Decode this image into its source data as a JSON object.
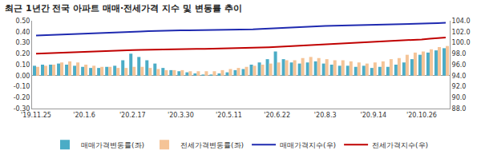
{
  "chart_data": {
    "type": "bar",
    "title": "최근 1년간 전국 아파트 매매·전세가격 지수 및 변동률 추이",
    "categories": [
      "'19.11.25",
      null,
      null,
      null,
      null,
      null,
      "'20.1.6",
      null,
      null,
      null,
      null,
      null,
      "'20.2.17",
      null,
      null,
      null,
      null,
      null,
      "'20.3.30",
      null,
      null,
      null,
      null,
      null,
      "'20.5.11",
      null,
      null,
      null,
      null,
      null,
      "'20.6.22",
      null,
      null,
      null,
      null,
      null,
      "'20.8.3",
      null,
      null,
      null,
      null,
      null,
      "'20.9.14",
      null,
      null,
      null,
      null,
      null,
      "'20.10.26",
      null,
      null,
      null
    ],
    "series": [
      {
        "name": "매매가격변동률(좌)",
        "type": "bar",
        "color": "#4bacc6",
        "values": [
          0.09,
          0.1,
          0.1,
          0.11,
          0.1,
          0.09,
          0.08,
          0.07,
          0.07,
          0.08,
          0.09,
          0.14,
          0.2,
          0.17,
          0.14,
          0.11,
          0.07,
          0.05,
          0.04,
          0.03,
          0.02,
          0.01,
          0.01,
          0.02,
          0.03,
          0.05,
          0.06,
          0.1,
          0.12,
          0.15,
          0.22,
          0.15,
          0.12,
          0.11,
          0.12,
          0.13,
          0.11,
          0.1,
          0.09,
          0.09,
          0.08,
          0.09,
          0.07,
          0.08,
          0.08,
          0.1,
          0.12,
          0.15,
          0.19,
          0.21,
          0.23,
          0.25
        ]
      },
      {
        "name": "전세가격변동률(좌)",
        "type": "bar",
        "color": "#f5c497",
        "values": [
          0.08,
          0.09,
          0.1,
          0.12,
          0.13,
          0.12,
          0.1,
          0.09,
          0.08,
          0.08,
          0.07,
          0.07,
          0.08,
          0.08,
          0.07,
          0.06,
          0.05,
          0.05,
          0.05,
          0.04,
          0.04,
          0.04,
          0.04,
          0.05,
          0.06,
          0.07,
          0.08,
          0.09,
          0.1,
          0.11,
          0.12,
          0.14,
          0.14,
          0.16,
          0.17,
          0.16,
          0.15,
          0.14,
          0.14,
          0.13,
          0.12,
          0.11,
          0.12,
          0.13,
          0.15,
          0.16,
          0.19,
          0.21,
          0.22,
          0.24,
          0.26,
          0.27
        ]
      },
      {
        "name": "매매가격지수(우)",
        "type": "line",
        "axis": "y2",
        "color": "#1f2ab0",
        "values": [
          101.3,
          101.35,
          101.4,
          101.45,
          101.5,
          101.55,
          101.6,
          101.65,
          101.7,
          101.75,
          101.8,
          101.85,
          101.95,
          102.05,
          102.12,
          102.18,
          102.22,
          102.24,
          102.26,
          102.27,
          102.28,
          102.29,
          102.3,
          102.31,
          102.33,
          102.36,
          102.4,
          102.45,
          102.52,
          102.6,
          102.7,
          102.78,
          102.85,
          102.92,
          102.98,
          103.03,
          103.07,
          103.1,
          103.13,
          103.16,
          103.18,
          103.21,
          103.23,
          103.25,
          103.28,
          103.31,
          103.35,
          103.4,
          103.46,
          103.52,
          103.58,
          103.65
        ]
      },
      {
        "name": "전세가격지수(우)",
        "type": "line",
        "axis": "y2",
        "color": "#c00000",
        "values": [
          98.0,
          98.06,
          98.12,
          98.18,
          98.25,
          98.32,
          98.38,
          98.43,
          98.48,
          98.52,
          98.56,
          98.6,
          98.64,
          98.68,
          98.72,
          98.75,
          98.78,
          98.8,
          98.82,
          98.84,
          98.86,
          98.88,
          98.9,
          98.92,
          98.95,
          98.98,
          99.02,
          99.07,
          99.12,
          99.18,
          99.25,
          99.33,
          99.41,
          99.5,
          99.58,
          99.66,
          99.73,
          99.8,
          99.86,
          99.92,
          99.98,
          100.03,
          100.09,
          100.15,
          100.22,
          100.3,
          100.39,
          100.49,
          100.6,
          100.71,
          100.83,
          100.95
        ]
      }
    ],
    "ylim": [
      -0.3,
      0.5
    ],
    "yticks": [
      {
        "value": -0.3,
        "label": "-0.30"
      },
      {
        "value": -0.2,
        "label": "-0.20"
      },
      {
        "value": -0.1,
        "label": "-0.10"
      },
      {
        "value": 0,
        "label": "0.00"
      },
      {
        "value": 0.1,
        "label": "0.10"
      },
      {
        "value": 0.2,
        "label": "0.20"
      },
      {
        "value": 0.3,
        "label": "0.30"
      },
      {
        "value": 0.4,
        "label": "0.40"
      },
      {
        "value": 0.5,
        "label": "0.50"
      }
    ],
    "y2lim": [
      88,
      104
    ],
    "y2ticks": [
      {
        "value": 88,
        "label": "88.0"
      },
      {
        "value": 90,
        "label": "90.0"
      },
      {
        "value": 92,
        "label": "92.0"
      },
      {
        "value": 94,
        "label": "94.0"
      },
      {
        "value": 96,
        "label": "96.0"
      },
      {
        "value": 98,
        "label": "98.0"
      },
      {
        "value": 100,
        "label": "100.0"
      },
      {
        "value": 102,
        "label": "102.0"
      },
      {
        "value": 104,
        "label": "104.0"
      }
    ],
    "grid": false,
    "legend": "bottom"
  }
}
